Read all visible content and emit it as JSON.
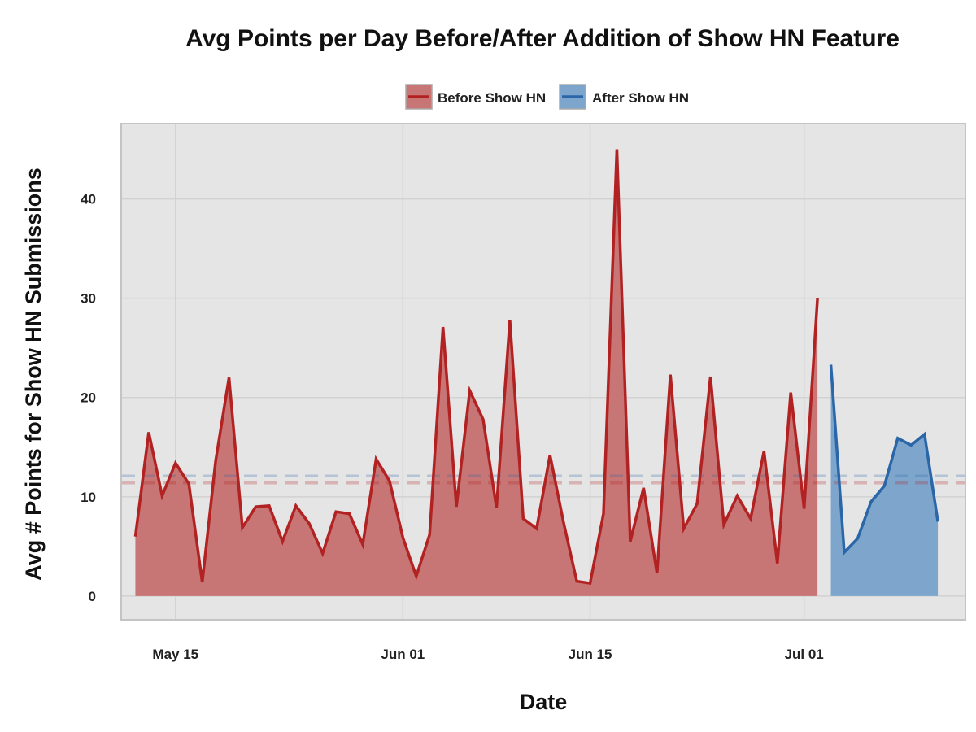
{
  "chart_data": {
    "type": "area",
    "title": "Avg Points per Day Before/After Addition of Show HN Feature",
    "xlabel": "Date",
    "ylabel": "Avg # Points for Show HN Submissions",
    "x_ticks": [
      {
        "label": "May 15",
        "date": "2013-05-15"
      },
      {
        "label": "Jun 01",
        "date": "2013-06-01"
      },
      {
        "label": "Jun 15",
        "date": "2013-06-15"
      },
      {
        "label": "Jul 01",
        "date": "2013-07-01"
      }
    ],
    "xlim": [
      "2013-05-11",
      "2013-07-13"
    ],
    "y_ticks": [
      0,
      10,
      20,
      30,
      40
    ],
    "ylim": [
      -2.3,
      47.5
    ],
    "grid": true,
    "legend_position": "top",
    "series": [
      {
        "name": "Before Show HN",
        "color": "#b22222",
        "fill": "#c87575",
        "mean": 11.4,
        "points": [
          [
            "2013-05-12",
            6.0
          ],
          [
            "2013-05-13",
            16.5
          ],
          [
            "2013-05-14",
            10.1
          ],
          [
            "2013-05-15",
            13.4
          ],
          [
            "2013-05-16",
            11.3
          ],
          [
            "2013-05-17",
            1.4
          ],
          [
            "2013-05-18",
            13.6
          ],
          [
            "2013-05-19",
            22.0
          ],
          [
            "2013-05-20",
            6.9
          ],
          [
            "2013-05-21",
            9.0
          ],
          [
            "2013-05-22",
            9.1
          ],
          [
            "2013-05-23",
            5.5
          ],
          [
            "2013-05-24",
            9.1
          ],
          [
            "2013-05-25",
            7.3
          ],
          [
            "2013-05-26",
            4.3
          ],
          [
            "2013-05-27",
            8.5
          ],
          [
            "2013-05-28",
            8.3
          ],
          [
            "2013-05-29",
            5.2
          ],
          [
            "2013-05-30",
            13.8
          ],
          [
            "2013-05-31",
            11.6
          ],
          [
            "2013-06-01",
            5.9
          ],
          [
            "2013-06-02",
            2.0
          ],
          [
            "2013-06-03",
            6.2
          ],
          [
            "2013-06-04",
            27.1
          ],
          [
            "2013-06-05",
            9.0
          ],
          [
            "2013-06-06",
            20.7
          ],
          [
            "2013-06-07",
            17.8
          ],
          [
            "2013-06-08",
            8.9
          ],
          [
            "2013-06-09",
            27.8
          ],
          [
            "2013-06-10",
            7.8
          ],
          [
            "2013-06-11",
            6.8
          ],
          [
            "2013-06-12",
            14.2
          ],
          [
            "2013-06-13",
            7.5
          ],
          [
            "2013-06-14",
            1.5
          ],
          [
            "2013-06-15",
            1.3
          ],
          [
            "2013-06-16",
            8.3
          ],
          [
            "2013-06-17",
            45.0
          ],
          [
            "2013-06-18",
            5.5
          ],
          [
            "2013-06-19",
            10.9
          ],
          [
            "2013-06-20",
            2.3
          ],
          [
            "2013-06-21",
            22.3
          ],
          [
            "2013-06-22",
            6.8
          ],
          [
            "2013-06-23",
            9.3
          ],
          [
            "2013-06-24",
            22.1
          ],
          [
            "2013-06-25",
            7.2
          ],
          [
            "2013-06-26",
            10.1
          ],
          [
            "2013-06-27",
            7.8
          ],
          [
            "2013-06-28",
            14.6
          ],
          [
            "2013-06-29",
            3.3
          ],
          [
            "2013-06-30",
            20.5
          ],
          [
            "2013-07-01",
            8.8
          ],
          [
            "2013-07-02",
            30.0
          ]
        ]
      },
      {
        "name": "After Show HN",
        "color": "#2a66a8",
        "fill": "#7ea6cc",
        "mean": 12.1,
        "points": [
          [
            "2013-07-03",
            23.3
          ],
          [
            "2013-07-04",
            4.4
          ],
          [
            "2013-07-05",
            5.8
          ],
          [
            "2013-07-06",
            9.5
          ],
          [
            "2013-07-07",
            11.1
          ],
          [
            "2013-07-08",
            15.9
          ],
          [
            "2013-07-09",
            15.2
          ],
          [
            "2013-07-10",
            16.3
          ],
          [
            "2013-07-11",
            7.5
          ]
        ]
      }
    ]
  }
}
